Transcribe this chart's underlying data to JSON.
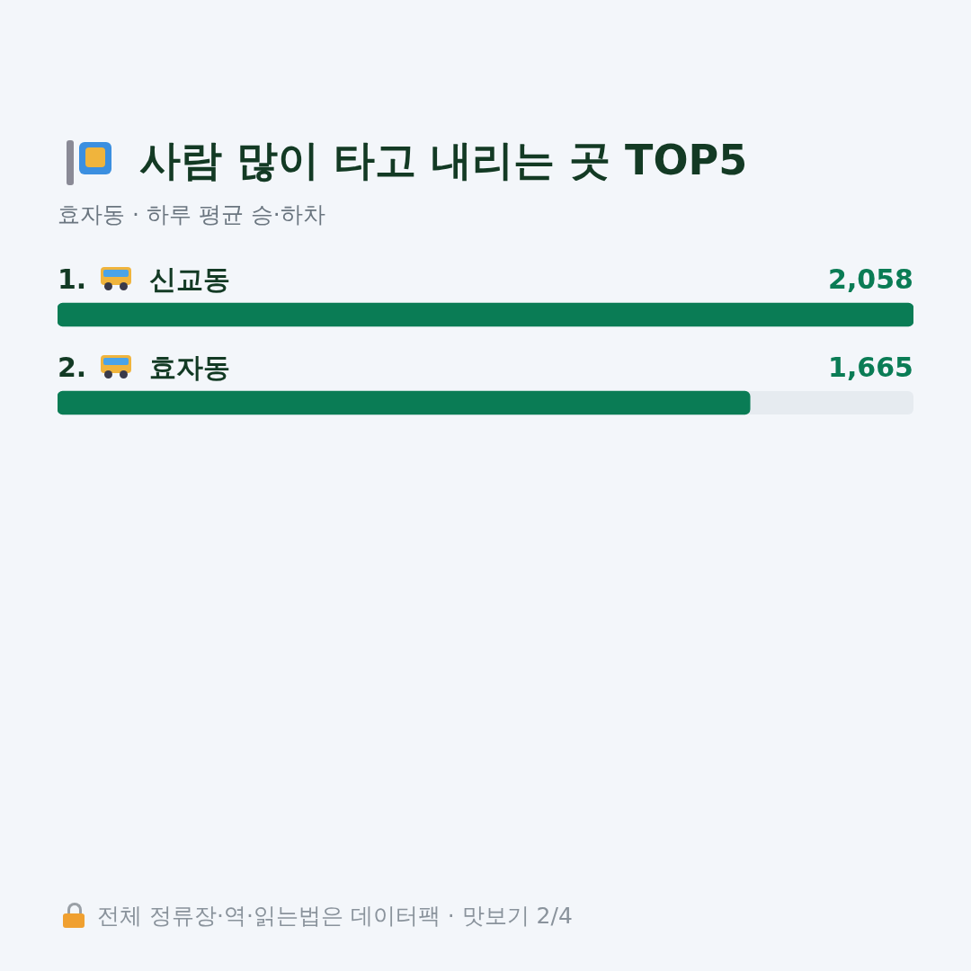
{
  "chart_data": {
    "type": "bar",
    "orientation": "horizontal",
    "title": "사람 많이 타고 내리는 곳 TOP5",
    "subtitle": "효자동 · 하루 평균 승·하차",
    "categories": [
      "1. 신교동",
      "2. 효자동"
    ],
    "values": [
      2058,
      1665
    ],
    "value_labels": [
      "2,058",
      "1,665"
    ],
    "color": "#0a7c55",
    "annotations": [
      "전체 정류장·역·읽는법은 데이터팩 · 맛보기 2/4"
    ]
  }
}
